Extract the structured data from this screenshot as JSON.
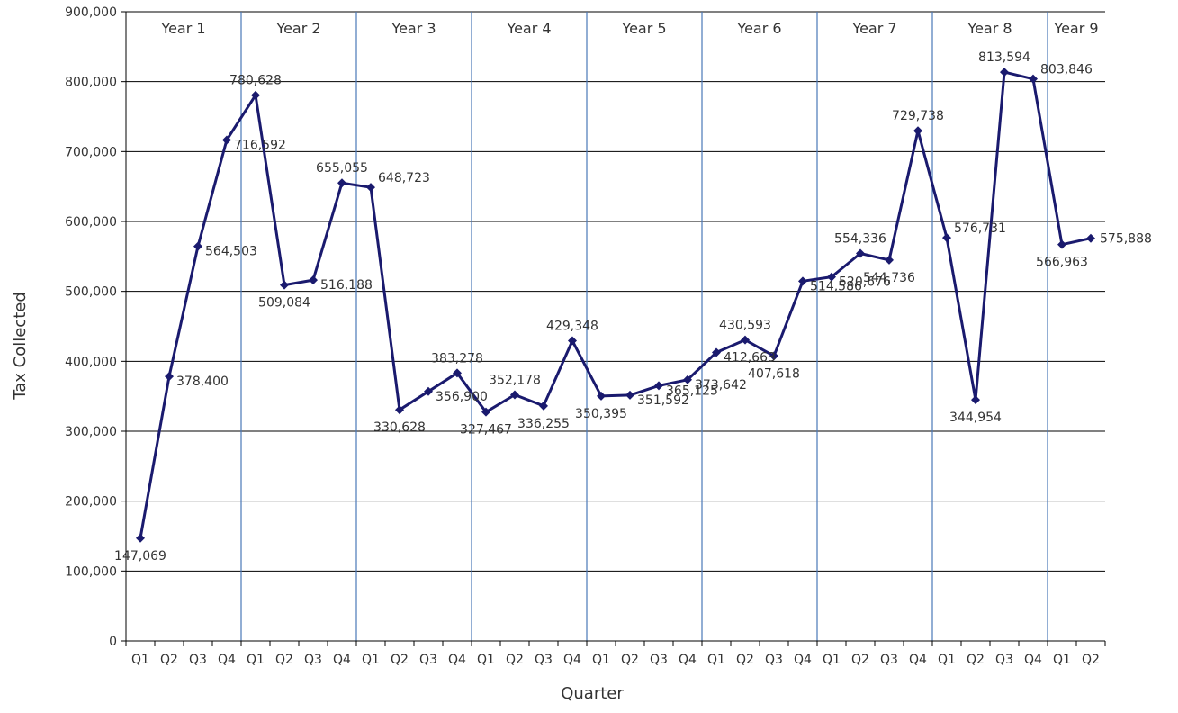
{
  "chart_data": {
    "type": "line",
    "xlabel": "Quarter",
    "ylabel": "Tax Collected",
    "ylim": [
      0,
      900000
    ],
    "y_ticks": [
      "0",
      "100,000",
      "200,000",
      "300,000",
      "400,000",
      "500,000",
      "600,000",
      "700,000",
      "800,000",
      "900,000"
    ],
    "grid": true,
    "legend": "none",
    "categories": [
      "Q1",
      "Q2",
      "Q3",
      "Q4",
      "Q1",
      "Q2",
      "Q3",
      "Q4",
      "Q1",
      "Q2",
      "Q3",
      "Q4",
      "Q1",
      "Q2",
      "Q3",
      "Q4",
      "Q1",
      "Q2",
      "Q3",
      "Q4",
      "Q1",
      "Q2",
      "Q3",
      "Q4",
      "Q1",
      "Q2",
      "Q3",
      "Q4",
      "Q1",
      "Q2",
      "Q3",
      "Q4",
      "Q1",
      "Q2"
    ],
    "groups": [
      "Year 1",
      "Year 2",
      "Year 3",
      "Year 4",
      "Year 5",
      "Year 6",
      "Year 7",
      "Year 8",
      "Year 9"
    ],
    "values": [
      147069,
      378400,
      564503,
      716592,
      780628,
      509084,
      516188,
      655055,
      648723,
      330628,
      356900,
      383278,
      327467,
      352178,
      336255,
      429348,
      350395,
      351592,
      365125,
      373642,
      412663,
      430593,
      407618,
      514586,
      520676,
      554336,
      544736,
      729738,
      576731,
      344954,
      813594,
      803846,
      566963,
      575888
    ],
    "value_labels": [
      "147,069",
      "378,400",
      "564,503",
      "716,592",
      "780,628",
      "509,084",
      "516,188",
      "655,055",
      "648,723",
      "330,628",
      "356,900",
      "383,278",
      "327,467",
      "352,178",
      "336,255",
      "429,348",
      "350,395",
      "351,592",
      "365,125",
      "373,642",
      "412,663",
      "430,593",
      "407,618",
      "514,586",
      "520,676",
      "554,336",
      "544,736",
      "729,738",
      "576,731",
      "344,954",
      "813,594",
      "803,846",
      "566,963",
      "575,888"
    ],
    "line_color": "#1a1a6e",
    "separator_color": "#4a78b8"
  }
}
